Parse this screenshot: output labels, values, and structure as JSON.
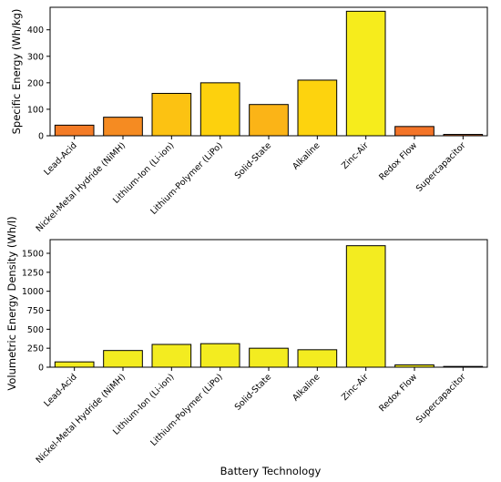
{
  "chart_data": [
    {
      "type": "bar",
      "title": "",
      "xlabel": "",
      "ylabel": "Specific Energy (Wh/kg)",
      "categories": [
        "Lead-Acid",
        "Nickel-Metal Hydride (NiMH)",
        "Lithium-Ion (Li-ion)",
        "Lithium-Polymer (LiPo)",
        "Solid-State",
        "Alkaline",
        "Zinc-Air",
        "Redox Flow",
        "Supercapacitor"
      ],
      "values": [
        40,
        70,
        160,
        200,
        118,
        210,
        470,
        35,
        5
      ],
      "colors": [
        "#f37b26",
        "#f58b22",
        "#fcc212",
        "#fdd10d",
        "#fbb417",
        "#fdd30e",
        "#f6ec1c",
        "#f37428",
        "#c95c22"
      ],
      "ylim": [
        0,
        485
      ],
      "yticks": [
        0,
        100,
        200,
        300,
        400
      ],
      "grid": false
    },
    {
      "type": "bar",
      "title": "",
      "xlabel": "Battery Technology",
      "ylabel": "Volumetric Energy Density (Wh/l)",
      "categories": [
        "Lead-Acid",
        "Nickel-Metal Hydride (NiMH)",
        "Lithium-Ion (Li-ion)",
        "Lithium-Polymer (LiPo)",
        "Solid-State",
        "Alkaline",
        "Zinc-Air",
        "Redox Flow",
        "Supercapacitor"
      ],
      "values": [
        70,
        220,
        300,
        310,
        250,
        230,
        1600,
        30,
        10
      ],
      "colors": [
        "#f3ec20",
        "#f3ec20",
        "#f3ec20",
        "#f3ec20",
        "#f3ec20",
        "#f3ec20",
        "#f3ec20",
        "#f3ec20",
        "#f3ec20"
      ],
      "ylim": [
        0,
        1680
      ],
      "yticks": [
        0,
        250,
        500,
        750,
        1000,
        1250,
        1500
      ],
      "grid": false
    }
  ]
}
